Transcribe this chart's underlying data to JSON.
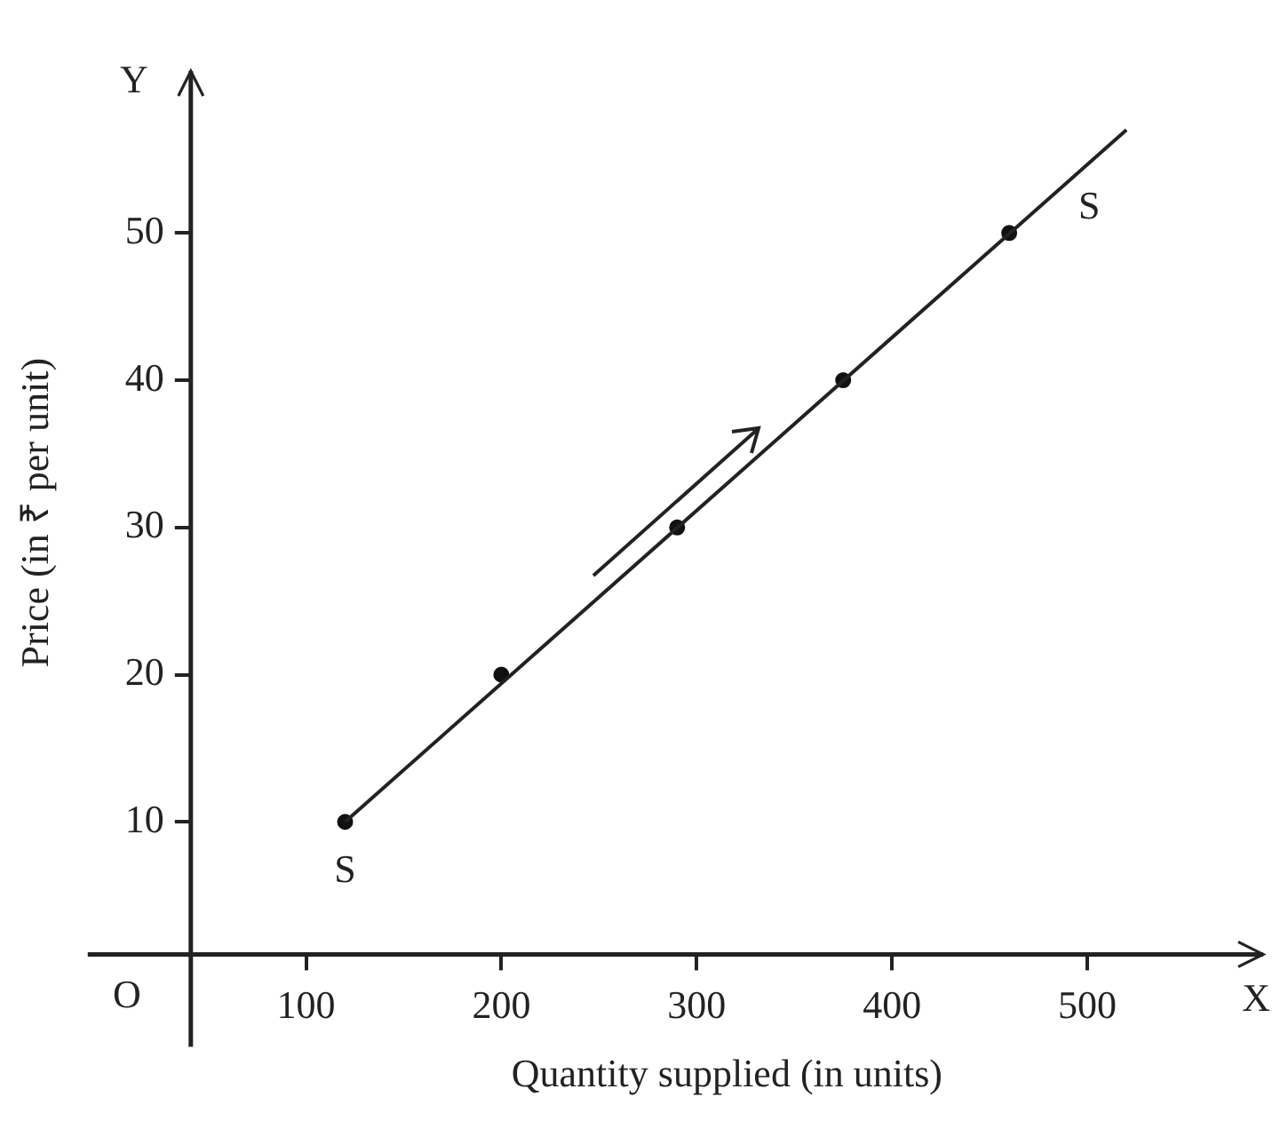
{
  "chart_data": {
    "type": "line",
    "xlabel": "Quantity supplied (in units)",
    "ylabel": "Price (in ₹ per unit)",
    "xlim": [
      41,
      590
    ],
    "ylim": [
      1,
      61
    ],
    "xticks": [
      100,
      200,
      300,
      400,
      500
    ],
    "yticks": [
      10,
      20,
      30,
      40,
      50
    ],
    "grid": false,
    "legend": false,
    "series": [
      {
        "type": "line",
        "color": "#222222",
        "x": [
          120,
          520
        ],
        "values": [
          10,
          57
        ],
        "marker": "none"
      },
      {
        "type": "scatter",
        "color": "#111111",
        "x": [
          120,
          200,
          290,
          375,
          460
        ],
        "values": [
          10,
          20,
          30,
          40,
          50
        ],
        "marker": "circle"
      }
    ],
    "annotations": [
      "S",
      "S",
      "O",
      "X",
      "Y"
    ]
  }
}
